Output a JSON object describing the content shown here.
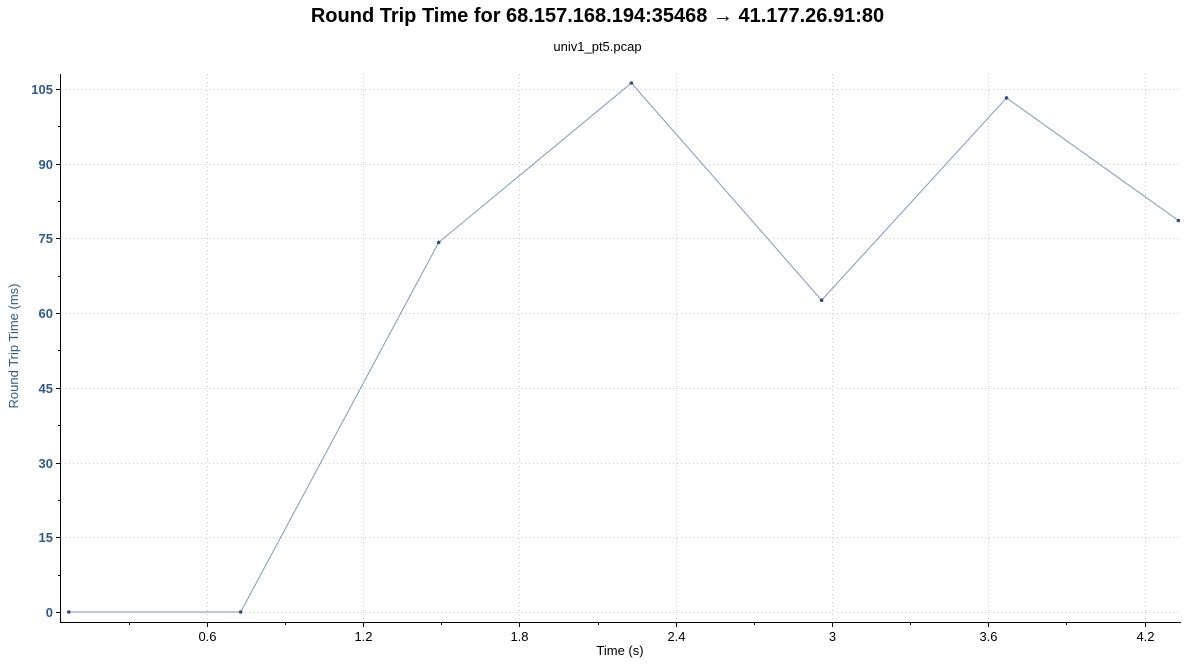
{
  "chart_data": {
    "type": "line",
    "title": "Round Trip Time for 68.157.168.194:35468 → 41.177.26.91:80",
    "subtitle": "univ1_pt5.pcap",
    "xlabel": "Time (s)",
    "ylabel": "Round Trip Time (ms)",
    "xlim": [
      0.04,
      4.34
    ],
    "ylim": [
      -2,
      108
    ],
    "x_ticks": [
      0.6,
      1.2,
      1.8,
      2.4,
      3,
      3.6,
      4.2
    ],
    "x_tick_labels": [
      "0.6",
      "1.2",
      "1.8",
      "2.4",
      "3",
      "3.6",
      "4.2"
    ],
    "y_ticks": [
      0,
      15,
      30,
      45,
      60,
      75,
      90,
      105
    ],
    "y_tick_labels": [
      "0",
      "15",
      "30",
      "45",
      "60",
      "75",
      "90",
      "105"
    ],
    "grid": true,
    "legend": "none",
    "series": [
      {
        "x": [
          0.07,
          0.73,
          1.49,
          2.23,
          2.96,
          3.67,
          4.33
        ],
        "values": [
          0,
          0,
          74.2,
          106.2,
          62.6,
          103.2,
          78.6
        ]
      }
    ],
    "colors": {
      "line": "#7f98c4",
      "marker": "#2d4f8c",
      "y_axis_text": "#2d5a8e",
      "grid": "#c8c8c8",
      "axis": "#000000"
    }
  }
}
